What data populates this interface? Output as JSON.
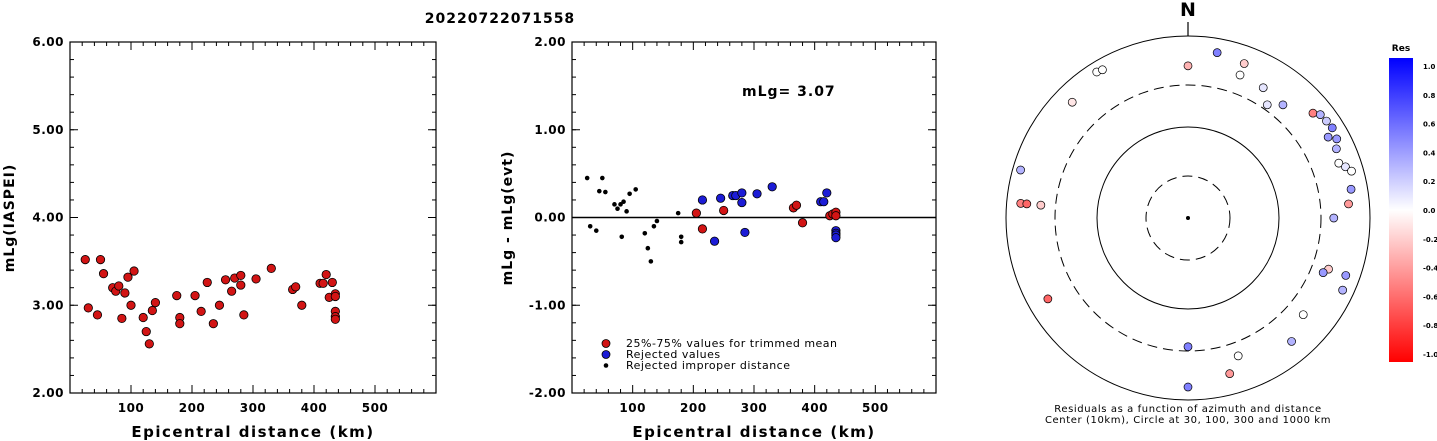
{
  "event_id": "20220722071558",
  "chart_data": [
    {
      "type": "scatter",
      "ylabel": "mLg(IASPEI)",
      "xlabel": "Epicentral distance (km)",
      "xlim": [
        0,
        600
      ],
      "ylim": [
        2.0,
        6.0
      ],
      "x_ticks": [
        "100",
        "200",
        "300",
        "400",
        "500"
      ],
      "y_ticks": [
        "6.00",
        "5.00",
        "4.00",
        "3.00",
        "2.00"
      ],
      "series": [
        {
          "color": "#d21414",
          "points": [
            [
              25,
              3.52
            ],
            [
              30,
              2.97
            ],
            [
              45,
              2.89
            ],
            [
              50,
              3.52
            ],
            [
              55,
              3.36
            ],
            [
              70,
              3.2
            ],
            [
              75,
              3.16
            ],
            [
              80,
              3.22
            ],
            [
              85,
              2.85
            ],
            [
              90,
              3.14
            ],
            [
              95,
              3.32
            ],
            [
              100,
              3.0
            ],
            [
              105,
              3.39
            ],
            [
              120,
              2.86
            ],
            [
              125,
              2.7
            ],
            [
              130,
              2.56
            ],
            [
              135,
              2.94
            ],
            [
              140,
              3.03
            ],
            [
              175,
              3.11
            ],
            [
              180,
              2.86
            ],
            [
              180,
              2.79
            ],
            [
              205,
              3.11
            ],
            [
              215,
              2.93
            ],
            [
              225,
              3.26
            ],
            [
              235,
              2.79
            ],
            [
              245,
              3.0
            ],
            [
              255,
              3.29
            ],
            [
              265,
              3.16
            ],
            [
              270,
              3.31
            ],
            [
              280,
              3.23
            ],
            [
              280,
              3.34
            ],
            [
              285,
              2.89
            ],
            [
              305,
              3.3
            ],
            [
              330,
              3.42
            ],
            [
              365,
              3.18
            ],
            [
              370,
              3.21
            ],
            [
              380,
              3.0
            ],
            [
              410,
              3.25
            ],
            [
              415,
              3.25
            ],
            [
              420,
              3.35
            ],
            [
              425,
              3.09
            ],
            [
              430,
              3.26
            ],
            [
              435,
              3.13
            ],
            [
              435,
              3.1
            ],
            [
              435,
              2.93
            ],
            [
              435,
              2.87
            ],
            [
              435,
              2.84
            ]
          ]
        }
      ]
    },
    {
      "type": "scatter",
      "ylabel": "mLg - mLg(evt)",
      "xlabel": "Epicentral distance (km)",
      "xlim": [
        0,
        600
      ],
      "ylim": [
        -2.0,
        2.0
      ],
      "x_ticks": [
        "100",
        "200",
        "300",
        "400",
        "500"
      ],
      "y_ticks": [
        "2.00",
        "1.00",
        "0.00",
        "-1.00",
        "-2.00"
      ],
      "annotation": "mLg= 3.07",
      "legend": [
        {
          "label": "25%-75% values for trimmed mean",
          "color": "#d21414"
        },
        {
          "label": "Rejected values",
          "color": "#1c1cd6"
        },
        {
          "label": "Rejected improper distance",
          "color": "#000000"
        }
      ],
      "series": [
        {
          "name": "25%-75% values for trimmed mean",
          "color": "#d21414",
          "points": [
            [
              205,
              0.05
            ],
            [
              215,
              -0.13
            ],
            [
              250,
              0.08
            ],
            [
              365,
              0.11
            ],
            [
              370,
              0.14
            ],
            [
              380,
              -0.06
            ],
            [
              425,
              0.02
            ],
            [
              430,
              0.04
            ],
            [
              435,
              0.06
            ],
            [
              435,
              0.02
            ]
          ]
        },
        {
          "name": "Rejected values",
          "color": "#1c1cd6",
          "points": [
            [
              215,
              0.2
            ],
            [
              235,
              -0.27
            ],
            [
              245,
              0.22
            ],
            [
              265,
              0.25
            ],
            [
              270,
              0.25
            ],
            [
              280,
              0.28
            ],
            [
              280,
              0.17
            ],
            [
              285,
              -0.17
            ],
            [
              305,
              0.27
            ],
            [
              330,
              0.35
            ],
            [
              410,
              0.18
            ],
            [
              415,
              0.18
            ],
            [
              420,
              0.28
            ],
            [
              435,
              -0.15
            ],
            [
              435,
              -0.18
            ],
            [
              435,
              -0.2
            ],
            [
              435,
              -0.23
            ]
          ]
        },
        {
          "name": "Rejected improper distance",
          "color": "#000000",
          "points": [
            [
              25,
              0.45
            ],
            [
              30,
              -0.1
            ],
            [
              40,
              -0.15
            ],
            [
              45,
              0.3
            ],
            [
              50,
              0.45
            ],
            [
              55,
              0.29
            ],
            [
              70,
              0.15
            ],
            [
              75,
              0.1
            ],
            [
              80,
              0.15
            ],
            [
              82,
              -0.22
            ],
            [
              85,
              0.18
            ],
            [
              90,
              0.07
            ],
            [
              95,
              0.27
            ],
            [
              105,
              0.32
            ],
            [
              120,
              -0.18
            ],
            [
              125,
              -0.35
            ],
            [
              130,
              -0.5
            ],
            [
              135,
              -0.1
            ],
            [
              140,
              -0.04
            ],
            [
              175,
              0.05
            ],
            [
              180,
              -0.22
            ],
            [
              180,
              -0.28
            ]
          ]
        }
      ]
    },
    {
      "type": "scatter",
      "title": "N",
      "subtitle": "Residuals as a function of azimuth and distance",
      "caption": "Center (10km), Circle at 30, 100, 300 and 1000 km",
      "colorbar": {
        "title": "Res",
        "ticks": [
          "1.0",
          "0.8",
          "0.6",
          "0.4",
          "0.2",
          "0.0",
          "-0.2",
          "-0.4",
          "-0.6",
          "-0.8",
          "-1.0"
        ]
      },
      "stations": [
        {
          "az": 328,
          "dist": 780,
          "res": 0.0
        },
        {
          "az": 330,
          "dist": 760,
          "res": 0.0
        },
        {
          "az": 315,
          "dist": 630,
          "res": -0.1
        },
        {
          "az": 286,
          "dist": 820,
          "res": 0.3
        },
        {
          "az": 275,
          "dist": 700,
          "res": -0.5
        },
        {
          "az": 275,
          "dist": 600,
          "res": -0.6
        },
        {
          "az": 275,
          "dist": 420,
          "res": -0.2
        },
        {
          "az": 240,
          "dist": 600,
          "res": -0.6
        },
        {
          "az": 10,
          "dist": 700,
          "res": 0.5
        },
        {
          "az": 20,
          "dist": 640,
          "res": -0.2
        },
        {
          "az": 0,
          "dist": 470,
          "res": -0.3
        },
        {
          "az": 20,
          "dist": 470,
          "res": 0.0
        },
        {
          "az": 30,
          "dist": 450,
          "res": 0.1
        },
        {
          "az": 40,
          "dist": 420,
          "res": 0.3
        },
        {
          "az": 35,
          "dist": 330,
          "res": 0.1
        },
        {
          "az": 50,
          "dist": 620,
          "res": -0.5
        },
        {
          "az": 60,
          "dist": 600,
          "res": 0.4
        },
        {
          "az": 52,
          "dist": 700,
          "res": 0.3
        },
        {
          "az": 62,
          "dist": 710,
          "res": 0.4
        },
        {
          "az": 55,
          "dist": 720,
          "res": 0.2
        },
        {
          "az": 58,
          "dist": 740,
          "res": 0.5
        },
        {
          "az": 65,
          "dist": 630,
          "res": 0.3
        },
        {
          "az": 70,
          "dist": 580,
          "res": 0.0
        },
        {
          "az": 72,
          "dist": 660,
          "res": 0.1
        },
        {
          "az": 80,
          "dist": 660,
          "res": 0.4
        },
        {
          "az": 74,
          "dist": 740,
          "res": 0.0
        },
        {
          "az": 85,
          "dist": 590,
          "res": -0.4
        },
        {
          "az": 90,
          "dist": 400,
          "res": 0.3
        },
        {
          "az": 110,
          "dist": 440,
          "res": -0.2
        },
        {
          "az": 112,
          "dist": 400,
          "res": 0.4
        },
        {
          "az": 110,
          "dist": 700,
          "res": 0.4
        },
        {
          "az": 115,
          "dist": 750,
          "res": 0.3
        },
        {
          "az": 130,
          "dist": 450,
          "res": 0.0
        },
        {
          "az": 140,
          "dist": 590,
          "res": 0.3
        },
        {
          "az": 160,
          "dist": 410,
          "res": 0.0
        },
        {
          "az": 165,
          "dist": 590,
          "res": -0.4
        },
        {
          "az": 180,
          "dist": 260,
          "res": 0.5
        },
        {
          "az": 180,
          "dist": 720,
          "res": 0.5
        }
      ]
    }
  ]
}
